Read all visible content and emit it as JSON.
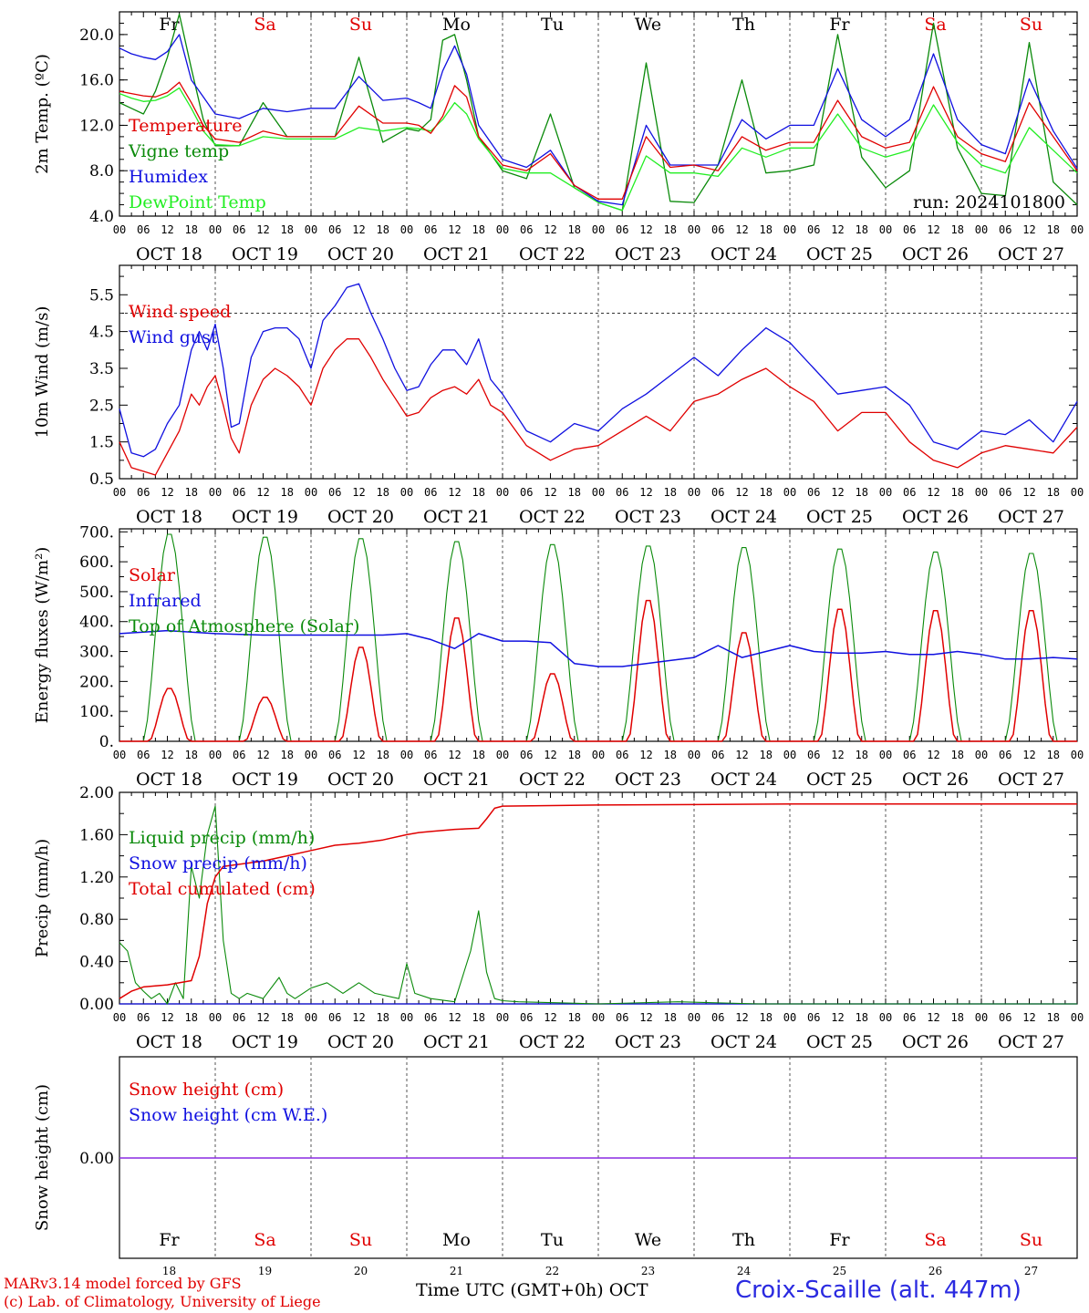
{
  "colors": {
    "red": "#e00000",
    "green": "#0a8a0a",
    "blue": "#1010e0",
    "lime": "#22ee22",
    "purple": "#8a2be2"
  },
  "days": [
    {
      "abbr": "Fr",
      "weekend": false,
      "date": "OCT 18",
      "num": "18"
    },
    {
      "abbr": "Sa",
      "weekend": true,
      "date": "OCT 19",
      "num": "19"
    },
    {
      "abbr": "Su",
      "weekend": true,
      "date": "OCT 20",
      "num": "20"
    },
    {
      "abbr": "Mo",
      "weekend": false,
      "date": "OCT 21",
      "num": "21"
    },
    {
      "abbr": "Tu",
      "weekend": false,
      "date": "OCT 22",
      "num": "22"
    },
    {
      "abbr": "We",
      "weekend": false,
      "date": "OCT 23",
      "num": "23"
    },
    {
      "abbr": "Th",
      "weekend": false,
      "date": "OCT 24",
      "num": "24"
    },
    {
      "abbr": "Fr",
      "weekend": false,
      "date": "OCT 25",
      "num": "25"
    },
    {
      "abbr": "Sa",
      "weekend": true,
      "date": "OCT 26",
      "num": "26"
    },
    {
      "abbr": "Su",
      "weekend": true,
      "date": "OCT 27",
      "num": "27"
    }
  ],
  "hour_ticks": [
    "00",
    "06",
    "12",
    "18"
  ],
  "footer": {
    "model": "MARv3.14 model forced by GFS",
    "lab": "(c) Lab. of Climatology, University of Liege",
    "time_axis": "Time UTC (GMT+0h) OCT",
    "station": "Croix-Scaille (alt. 447m)"
  },
  "chart_data": [
    {
      "type": "line",
      "ylabel": "2m Temp. (ºC)",
      "ylim": [
        4.0,
        22.0
      ],
      "yticks": [
        "4.0",
        "8.0",
        "12.0",
        "16.0",
        "20.0"
      ],
      "annotation": "run: 2024101800",
      "x_unit": "hours since OCT 18 00 UTC",
      "series": [
        {
          "name": "Temperature",
          "color": "red",
          "x": [
            0,
            3,
            6,
            9,
            12,
            15,
            18,
            21,
            24,
            30,
            36,
            42,
            48,
            54,
            60,
            66,
            72,
            75,
            78,
            81,
            84,
            87,
            90,
            96,
            102,
            108,
            114,
            120,
            126,
            132,
            138,
            144,
            150,
            156,
            162,
            168,
            174,
            180,
            186,
            192,
            198,
            204,
            210,
            216,
            222,
            228,
            234,
            240
          ],
          "y": [
            15.0,
            14.8,
            14.6,
            14.5,
            14.9,
            15.8,
            14.0,
            12.0,
            10.8,
            10.5,
            11.5,
            11.0,
            11.0,
            11.0,
            13.7,
            12.2,
            12.2,
            12.0,
            11.3,
            12.8,
            15.5,
            14.5,
            11.0,
            8.5,
            8.0,
            9.5,
            6.7,
            5.5,
            5.5,
            11.0,
            8.3,
            8.5,
            8.0,
            11.0,
            9.8,
            10.5,
            10.5,
            14.2,
            11.0,
            10.0,
            10.5,
            15.4,
            11.0,
            9.5,
            8.8,
            14.0,
            11.0,
            8.0
          ]
        },
        {
          "name": "Vigne temp",
          "color": "green",
          "x": [
            0,
            3,
            6,
            9,
            12,
            15,
            18,
            21,
            24,
            30,
            36,
            42,
            48,
            54,
            60,
            66,
            72,
            75,
            78,
            81,
            84,
            87,
            90,
            96,
            102,
            108,
            114,
            120,
            126,
            132,
            138,
            144,
            150,
            156,
            162,
            168,
            174,
            180,
            186,
            192,
            198,
            204,
            210,
            216,
            222,
            228,
            234,
            240
          ],
          "y": [
            14.0,
            13.5,
            13.0,
            15.0,
            18.0,
            21.8,
            17.0,
            12.5,
            10.2,
            10.2,
            14.0,
            11.0,
            11.0,
            11.0,
            18.0,
            10.5,
            11.7,
            11.5,
            12.5,
            19.5,
            20.0,
            16.0,
            11.0,
            8.0,
            7.3,
            13.0,
            6.5,
            5.2,
            4.5,
            17.5,
            5.3,
            5.2,
            8.5,
            16.0,
            7.8,
            8.0,
            8.5,
            20.0,
            9.2,
            6.5,
            8.0,
            21.0,
            10.0,
            6.0,
            5.8,
            19.3,
            7.0,
            5.0
          ]
        },
        {
          "name": "Humidex",
          "color": "blue",
          "x": [
            0,
            3,
            6,
            9,
            12,
            15,
            18,
            21,
            24,
            30,
            36,
            42,
            48,
            54,
            60,
            66,
            72,
            75,
            78,
            81,
            84,
            87,
            90,
            96,
            102,
            108,
            114,
            120,
            126,
            132,
            138,
            144,
            150,
            156,
            162,
            168,
            174,
            180,
            186,
            192,
            198,
            204,
            210,
            216,
            222,
            228,
            234,
            240
          ],
          "y": [
            18.8,
            18.3,
            18.0,
            17.8,
            18.5,
            20.0,
            16.0,
            14.5,
            13.0,
            12.6,
            13.5,
            13.2,
            13.5,
            13.5,
            16.3,
            14.2,
            14.4,
            14.0,
            13.5,
            16.8,
            19.0,
            16.5,
            12.0,
            9.0,
            8.3,
            9.8,
            6.7,
            5.3,
            5.0,
            12.0,
            8.5,
            8.5,
            8.5,
            12.5,
            10.8,
            12.0,
            12.0,
            17.0,
            12.5,
            11.0,
            12.5,
            18.3,
            12.5,
            10.3,
            9.5,
            16.1,
            11.5,
            8.2
          ]
        },
        {
          "name": "DewPoint Temp",
          "color": "lime",
          "x": [
            0,
            3,
            6,
            9,
            12,
            15,
            18,
            21,
            24,
            30,
            36,
            42,
            48,
            54,
            60,
            66,
            72,
            75,
            78,
            81,
            84,
            87,
            90,
            96,
            102,
            108,
            114,
            120,
            126,
            132,
            138,
            144,
            150,
            156,
            162,
            168,
            174,
            180,
            186,
            192,
            198,
            204,
            210,
            216,
            222,
            228,
            234,
            240
          ],
          "y": [
            14.8,
            14.4,
            14.1,
            14.2,
            14.6,
            15.3,
            13.5,
            11.5,
            10.3,
            10.2,
            11.0,
            10.8,
            10.8,
            10.8,
            11.8,
            11.5,
            11.8,
            11.7,
            11.5,
            12.5,
            14.0,
            13.0,
            10.8,
            8.2,
            7.8,
            7.8,
            6.5,
            5.2,
            4.5,
            9.3,
            7.8,
            7.8,
            7.5,
            10.0,
            9.2,
            10.0,
            10.0,
            13.0,
            10.0,
            9.2,
            9.8,
            13.8,
            10.5,
            8.5,
            7.8,
            11.8,
            9.8,
            7.8
          ]
        }
      ]
    },
    {
      "type": "line",
      "ylabel": "10m Wind (m/s)",
      "ylim": [
        0.5,
        6.3
      ],
      "yticks": [
        "0.5",
        "1.5",
        "2.5",
        "3.5",
        "4.5",
        "5.5"
      ],
      "reference_line": 5.0,
      "x_unit": "hours since OCT 18 00 UTC",
      "series": [
        {
          "name": "Wind speed",
          "color": "red",
          "x": [
            0,
            3,
            6,
            9,
            12,
            15,
            18,
            20,
            22,
            24,
            26,
            28,
            30,
            33,
            36,
            39,
            42,
            45,
            48,
            51,
            54,
            57,
            60,
            63,
            66,
            69,
            72,
            75,
            78,
            81,
            84,
            87,
            90,
            93,
            96,
            102,
            108,
            114,
            120,
            126,
            132,
            138,
            144,
            150,
            156,
            162,
            168,
            174,
            180,
            186,
            192,
            198,
            204,
            210,
            216,
            222,
            228,
            234,
            240
          ],
          "y": [
            1.5,
            0.8,
            0.7,
            0.6,
            1.2,
            1.8,
            2.8,
            2.5,
            3.0,
            3.3,
            2.5,
            1.6,
            1.2,
            2.5,
            3.2,
            3.5,
            3.3,
            3.0,
            2.5,
            3.5,
            4.0,
            4.3,
            4.3,
            3.8,
            3.2,
            2.7,
            2.2,
            2.3,
            2.7,
            2.9,
            3.0,
            2.8,
            3.2,
            2.5,
            2.3,
            1.4,
            1.0,
            1.3,
            1.4,
            1.8,
            2.2,
            1.8,
            2.6,
            2.8,
            3.2,
            3.5,
            3.0,
            2.6,
            1.8,
            2.3,
            2.3,
            1.5,
            1.0,
            0.8,
            1.2,
            1.4,
            1.3,
            1.2,
            1.9
          ]
        },
        {
          "name": "Wind gust",
          "color": "blue",
          "x": [
            0,
            3,
            6,
            9,
            12,
            15,
            18,
            20,
            22,
            24,
            26,
            28,
            30,
            33,
            36,
            39,
            42,
            45,
            48,
            51,
            54,
            57,
            60,
            63,
            66,
            69,
            72,
            75,
            78,
            81,
            84,
            87,
            90,
            93,
            96,
            102,
            108,
            114,
            120,
            126,
            132,
            138,
            144,
            150,
            156,
            162,
            168,
            174,
            180,
            186,
            192,
            198,
            204,
            210,
            216,
            222,
            228,
            234,
            240
          ],
          "y": [
            2.4,
            1.2,
            1.1,
            1.3,
            2.0,
            2.5,
            4.0,
            4.5,
            4.0,
            4.7,
            3.5,
            1.9,
            2.0,
            3.8,
            4.5,
            4.6,
            4.6,
            4.3,
            3.5,
            4.8,
            5.2,
            5.7,
            5.8,
            5.0,
            4.3,
            3.5,
            2.9,
            3.0,
            3.6,
            4.0,
            4.0,
            3.6,
            4.3,
            3.2,
            2.8,
            1.8,
            1.5,
            2.0,
            1.8,
            2.4,
            2.8,
            3.3,
            3.8,
            3.3,
            4.0,
            4.6,
            4.2,
            3.5,
            2.8,
            2.9,
            3.0,
            2.5,
            1.5,
            1.3,
            1.8,
            1.7,
            2.1,
            1.5,
            2.6
          ]
        }
      ]
    },
    {
      "type": "line",
      "ylabel": "Energy fluxes (W/m²)",
      "ylim": [
        0,
        710
      ],
      "yticks": [
        "0.",
        "100.",
        "200.",
        "300.",
        "400.",
        "500.",
        "600.",
        "700."
      ],
      "x_unit": "hours since OCT 18 00 UTC",
      "series": [
        {
          "name": "Solar",
          "color": "red",
          "daily_peaks": [
            180,
            150,
            320,
            420,
            230,
            480,
            370,
            450,
            445,
            445
          ]
        },
        {
          "name": "Infrared",
          "color": "blue",
          "x": [
            0,
            6,
            12,
            18,
            24,
            36,
            48,
            60,
            66,
            72,
            78,
            84,
            90,
            96,
            102,
            108,
            114,
            120,
            126,
            132,
            138,
            144,
            150,
            156,
            162,
            168,
            174,
            180,
            186,
            192,
            198,
            204,
            210,
            216,
            222,
            228,
            234,
            240
          ],
          "y": [
            360,
            365,
            370,
            365,
            360,
            355,
            355,
            355,
            355,
            360,
            340,
            310,
            360,
            335,
            335,
            330,
            260,
            250,
            250,
            260,
            270,
            280,
            320,
            280,
            300,
            320,
            300,
            295,
            295,
            300,
            290,
            290,
            300,
            290,
            275,
            275,
            280,
            275
          ]
        },
        {
          "name": "Top of Atmosphere (Solar)",
          "color": "green",
          "daily_peaks": [
            700,
            690,
            685,
            675,
            665,
            660,
            655,
            650,
            640,
            635
          ]
        }
      ]
    },
    {
      "type": "line",
      "ylabel": "Precip (mm/h)",
      "ylim": [
        0.0,
        2.0
      ],
      "yticks": [
        "0.00",
        "0.40",
        "0.80",
        "1.20",
        "1.60",
        "2.00"
      ],
      "x_unit": "hours since OCT 18 00 UTC",
      "series": [
        {
          "name": "Liquid precip (mm/h)",
          "color": "green",
          "x": [
            0,
            2,
            4,
            6,
            8,
            10,
            12,
            14,
            16,
            18,
            20,
            22,
            24,
            26,
            28,
            30,
            32,
            36,
            40,
            42,
            44,
            48,
            52,
            56,
            60,
            64,
            70,
            72,
            74,
            78,
            84,
            88,
            90,
            92,
            94,
            96,
            100,
            110,
            120,
            140,
            160,
            180,
            200,
            220,
            240
          ],
          "y": [
            0.58,
            0.5,
            0.2,
            0.12,
            0.05,
            0.1,
            0.0,
            0.2,
            0.05,
            1.3,
            1.0,
            1.6,
            1.87,
            0.6,
            0.1,
            0.05,
            0.1,
            0.05,
            0.25,
            0.1,
            0.05,
            0.15,
            0.2,
            0.1,
            0.2,
            0.1,
            0.05,
            0.38,
            0.1,
            0.05,
            0.02,
            0.5,
            0.88,
            0.3,
            0.05,
            0.03,
            0.02,
            0.01,
            0.0,
            0.02,
            0.0,
            0.0,
            0.0,
            0.0,
            0.0
          ]
        },
        {
          "name": "Snow precip (mm/h)",
          "color": "blue",
          "x": [
            0,
            240
          ],
          "y": [
            0,
            0
          ]
        },
        {
          "name": "Total cumulated (cm)",
          "color": "red",
          "x": [
            0,
            3,
            6,
            12,
            18,
            20,
            22,
            24,
            26,
            30,
            36,
            42,
            48,
            54,
            60,
            66,
            72,
            75,
            78,
            84,
            90,
            92,
            94,
            96,
            120,
            168,
            240
          ],
          "y": [
            0.05,
            0.12,
            0.16,
            0.18,
            0.22,
            0.45,
            0.95,
            1.2,
            1.3,
            1.32,
            1.35,
            1.4,
            1.45,
            1.5,
            1.52,
            1.55,
            1.6,
            1.62,
            1.63,
            1.65,
            1.66,
            1.75,
            1.85,
            1.87,
            1.88,
            1.89,
            1.89
          ]
        }
      ]
    },
    {
      "type": "line",
      "ylabel": "Snow height (cm)",
      "ytick": "0.00",
      "series": [
        {
          "name": "Snow height (cm)",
          "color": "red",
          "x": [
            0,
            240
          ],
          "y": [
            0,
            0
          ]
        },
        {
          "name": "Snow height (cm W.E.)",
          "color": "blue",
          "x": [
            0,
            240
          ],
          "y": [
            0,
            0
          ]
        }
      ]
    }
  ]
}
